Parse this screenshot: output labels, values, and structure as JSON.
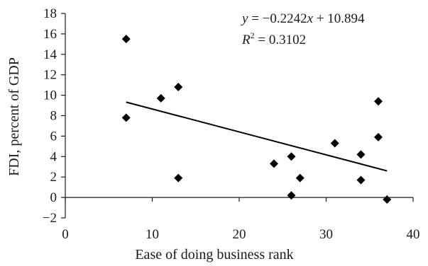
{
  "chart_data": {
    "type": "scatter",
    "title": "",
    "xlabel": "Ease of doing business rank",
    "ylabel": "FDI, percent of GDP",
    "xlim": [
      0,
      40
    ],
    "ylim": [
      -2,
      18
    ],
    "xticks": [
      0,
      10,
      20,
      30,
      40
    ],
    "yticks": [
      -2,
      0,
      2,
      4,
      6,
      8,
      10,
      12,
      14,
      16,
      18
    ],
    "xtick_labels": [
      "0",
      "10",
      "20",
      "30",
      "40"
    ],
    "ytick_labels": [
      "−2",
      "0",
      "2",
      "4",
      "6",
      "8",
      "10",
      "12",
      "14",
      "16",
      "18"
    ],
    "grid": false,
    "legend": "none",
    "marker": "diamond",
    "marker_color": "#000000",
    "series": [
      {
        "points": [
          {
            "x": 7,
            "y": 15.5
          },
          {
            "x": 7,
            "y": 7.8
          },
          {
            "x": 11,
            "y": 9.7
          },
          {
            "x": 13,
            "y": 10.8
          },
          {
            "x": 13,
            "y": 1.9
          },
          {
            "x": 24,
            "y": 3.3
          },
          {
            "x": 26,
            "y": 4.0
          },
          {
            "x": 26,
            "y": 0.2
          },
          {
            "x": 27,
            "y": 1.9
          },
          {
            "x": 31,
            "y": 5.3
          },
          {
            "x": 34,
            "y": 4.2
          },
          {
            "x": 34,
            "y": 1.7
          },
          {
            "x": 36,
            "y": 9.4
          },
          {
            "x": 36,
            "y": 5.9
          },
          {
            "x": 37,
            "y": -0.2
          }
        ]
      }
    ],
    "trendline": {
      "slope": -0.2242,
      "intercept": 10.894,
      "x_range": [
        7,
        37
      ]
    },
    "annotation": {
      "eq_y": "y",
      "eq_mid": " = −0.2242",
      "eq_x": "x",
      "eq_end": " + 10.894",
      "r2_r": "R",
      "r2_sup": "2",
      "r2_end": " = 0.3102"
    }
  }
}
